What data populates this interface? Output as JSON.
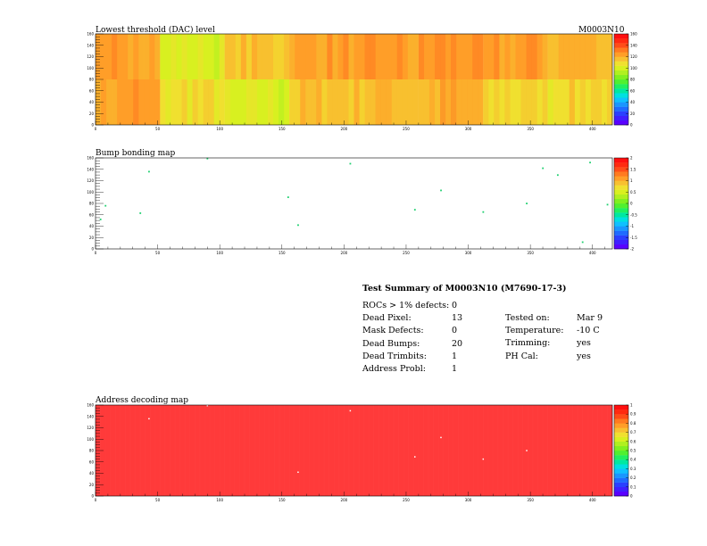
{
  "module_id": "M0003N10",
  "panels": {
    "threshold": {
      "title": "Lowest threshold (DAC) level"
    },
    "bump": {
      "title": "Bump bonding map"
    },
    "address": {
      "title": "Address decoding map"
    }
  },
  "summary": {
    "title": "Test Summary of M0003N10 (M7690-17-3)",
    "left": [
      {
        "label": "ROCs > 1% defects:",
        "value": "0"
      },
      {
        "label": "Dead Pixel:",
        "value": "13"
      },
      {
        "label": "Mask Defects:",
        "value": "0"
      },
      {
        "label": "Dead Bumps:",
        "value": "20"
      },
      {
        "label": "Dead Trimbits:",
        "value": "1"
      },
      {
        "label": "Address Probl:",
        "value": "1"
      }
    ],
    "right": [
      {
        "label": "Tested on:",
        "value": "Mar 9"
      },
      {
        "label": "Temperature:",
        "value": "-10 C"
      },
      {
        "label": "Trimming:",
        "value": "yes"
      },
      {
        "label": "PH Cal:",
        "value": "yes"
      }
    ]
  },
  "colors": {
    "palette": [
      "#5a00ff",
      "#3f1fff",
      "#2a40ff",
      "#1f6bff",
      "#1a96ff",
      "#10c0ff",
      "#00e0e0",
      "#00e8a0",
      "#20f060",
      "#50f030",
      "#80f020",
      "#b0f020",
      "#d8f020",
      "#f0e030",
      "#f8c030",
      "#ff9e28",
      "#ff7a20",
      "#ff4d18",
      "#ff2a10",
      "#ff0f0f"
    ],
    "address_fill": "#ff3a3a"
  },
  "chart_data": [
    {
      "type": "heatmap",
      "title": "Lowest threshold (DAC) level",
      "x_ticks": [
        "0",
        "50",
        "100",
        "150",
        "200",
        "250",
        "300",
        "350",
        "400"
      ],
      "y_ticks": [
        "0",
        "20",
        "40",
        "60",
        "80",
        "100",
        "120",
        "140",
        "160"
      ],
      "xlim": [
        0,
        416
      ],
      "ylim": [
        0,
        160
      ],
      "z_ticks": [
        "0",
        "20",
        "40",
        "60",
        "80",
        "100",
        "120",
        "140",
        "160"
      ],
      "zlim": [
        0,
        160
      ],
      "roc_means": [
        [
          120,
          105,
          98,
          112,
          116,
          118,
          109,
          110
        ],
        [
          120,
          100,
          112,
          120,
          120,
          124,
          120,
          118
        ]
      ]
    },
    {
      "type": "heatmap",
      "title": "Bump bonding map",
      "x_ticks": [
        "0",
        "50",
        "100",
        "150",
        "200",
        "250",
        "300",
        "350",
        "400"
      ],
      "y_ticks": [
        "0",
        "20",
        "40",
        "60",
        "80",
        "100",
        "120",
        "140",
        "160"
      ],
      "xlim": [
        0,
        416
      ],
      "ylim": [
        0,
        160
      ],
      "z_ticks": [
        "-2",
        "-1.5",
        "-1",
        "-0.5",
        "0",
        "0.5",
        "1",
        "1.5",
        "2"
      ],
      "zlim": [
        -2,
        2
      ],
      "points": [
        [
          90,
          159
        ],
        [
          205,
          150
        ],
        [
          360,
          142
        ],
        [
          43,
          136
        ],
        [
          398,
          152
        ],
        [
          372,
          130
        ],
        [
          278,
          103
        ],
        [
          155,
          91
        ],
        [
          412,
          78
        ],
        [
          347,
          80
        ],
        [
          8,
          76
        ],
        [
          36,
          63
        ],
        [
          257,
          69
        ],
        [
          312,
          65
        ],
        [
          163,
          42
        ],
        [
          392,
          12
        ],
        [
          4,
          52
        ]
      ]
    },
    {
      "type": "heatmap",
      "title": "Address decoding map",
      "x_ticks": [
        "0",
        "50",
        "100",
        "150",
        "200",
        "250",
        "300",
        "350",
        "400"
      ],
      "y_ticks": [
        "0",
        "20",
        "40",
        "60",
        "80",
        "100",
        "120",
        "140",
        "160"
      ],
      "xlim": [
        0,
        416
      ],
      "ylim": [
        0,
        160
      ],
      "z_ticks": [
        "0",
        "0.1",
        "0.2",
        "0.3",
        "0.4",
        "0.5",
        "0.6",
        "0.7",
        "0.8",
        "0.9",
        "1"
      ],
      "zlim": [
        0,
        1
      ],
      "points": [
        [
          90,
          159
        ],
        [
          205,
          150
        ],
        [
          43,
          136
        ],
        [
          278,
          103
        ],
        [
          257,
          69
        ],
        [
          163,
          42
        ],
        [
          347,
          80
        ],
        [
          312,
          65
        ]
      ]
    }
  ]
}
